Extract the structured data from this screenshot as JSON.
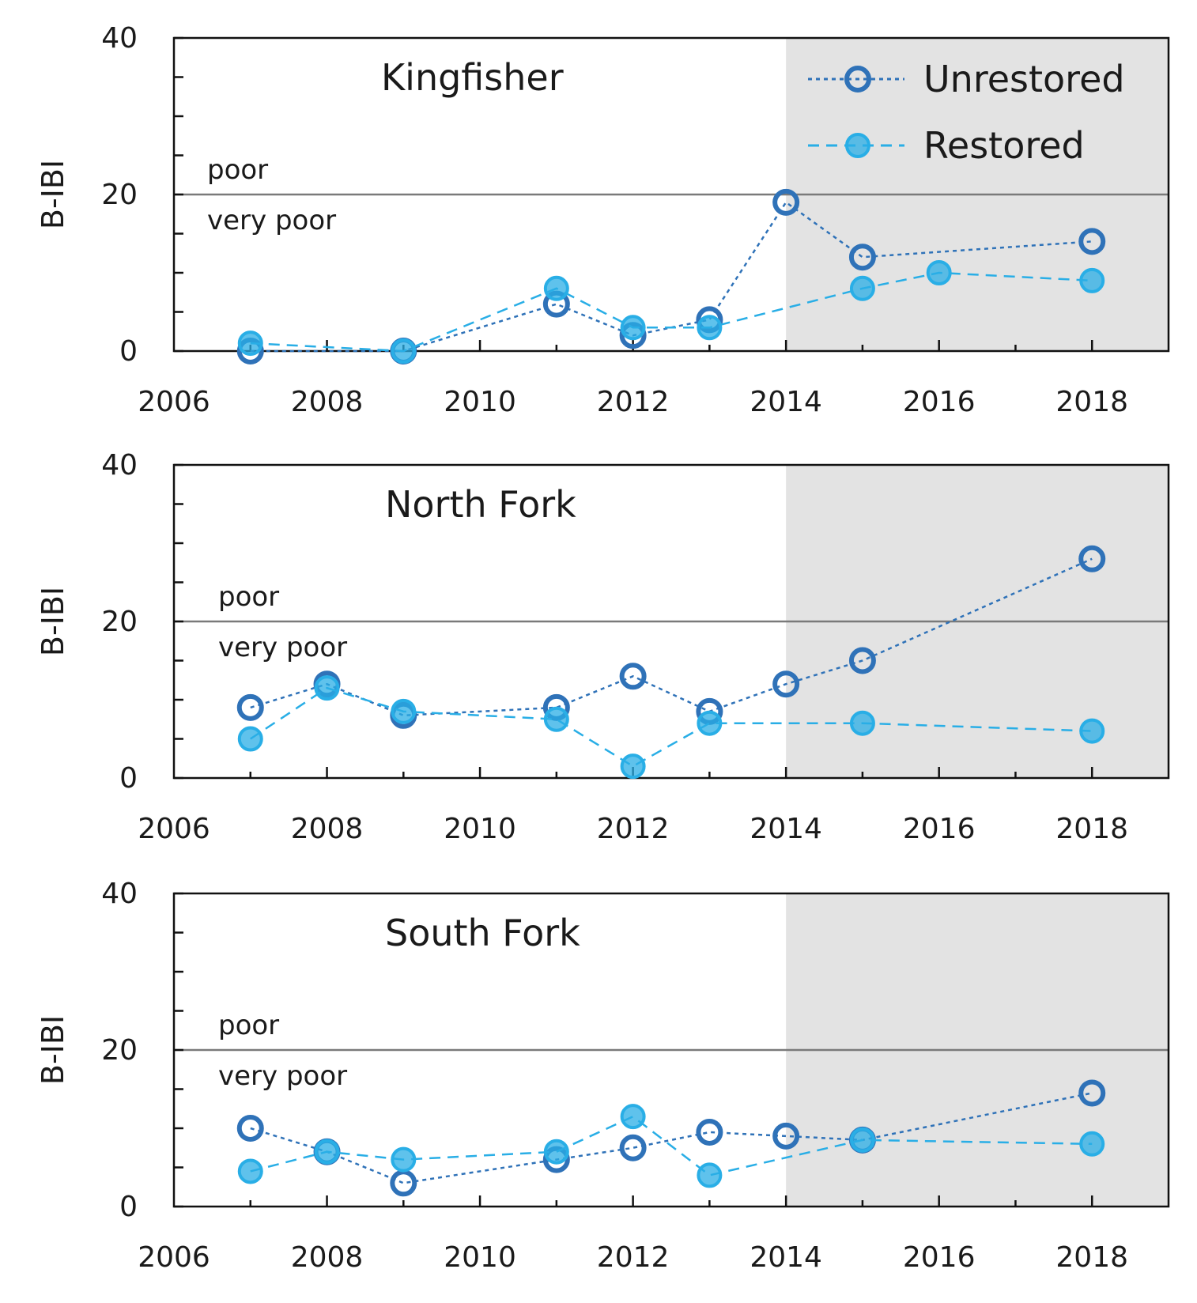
{
  "colors": {
    "unrestored": "#2f72b8",
    "restored": "#29aee6",
    "shade": "#e3e3e3",
    "axis": "#111111",
    "threshold_line": "#7a7a7a"
  },
  "legend": {
    "unrestored_label": "Unrestored",
    "restored_label": "Restored"
  },
  "chart_data": [
    {
      "type": "line",
      "title": "Kingfisher",
      "ylabel": "B-IBI",
      "xlabel": "",
      "xlim": [
        2006,
        2019
      ],
      "ylim": [
        0,
        40
      ],
      "x_ticks": [
        "2006",
        "2008",
        "2010",
        "2012",
        "2014",
        "2016",
        "2018"
      ],
      "y_ticks": [
        "0",
        "20",
        "40"
      ],
      "shaded_from": 2014,
      "threshold": 20,
      "threshold_labels": {
        "above": "poor",
        "below": "very poor"
      },
      "series": [
        {
          "name": "Unrestored",
          "x": [
            2007,
            2009,
            2011,
            2012,
            2013,
            2014,
            2015,
            2018
          ],
          "values": [
            0,
            0,
            6,
            2,
            4,
            19,
            12,
            14
          ]
        },
        {
          "name": "Restored",
          "x": [
            2007,
            2009,
            2011,
            2012,
            2013,
            2015,
            2016,
            2018
          ],
          "values": [
            1,
            0,
            8,
            3,
            3,
            8,
            10,
            9
          ]
        }
      ]
    },
    {
      "type": "line",
      "title": "North  Fork",
      "ylabel": "B-IBI",
      "xlabel": "",
      "xlim": [
        2006,
        2019
      ],
      "ylim": [
        0,
        40
      ],
      "x_ticks": [
        "2006",
        "2008",
        "2010",
        "2012",
        "2014",
        "2016",
        "2018"
      ],
      "y_ticks": [
        "0",
        "20",
        "40"
      ],
      "shaded_from": 2014,
      "threshold": 20,
      "threshold_labels": {
        "above": "poor",
        "below": "very poor"
      },
      "series": [
        {
          "name": "Unrestored",
          "x": [
            2007,
            2008,
            2009,
            2011,
            2012,
            2013,
            2014,
            2015,
            2018
          ],
          "values": [
            9,
            12,
            8,
            9,
            13,
            8.5,
            12,
            15,
            28
          ]
        },
        {
          "name": "Restored",
          "x": [
            2007,
            2008,
            2009,
            2011,
            2012,
            2013,
            2015,
            2018
          ],
          "values": [
            5,
            11.5,
            8.5,
            7.5,
            1.5,
            7,
            7,
            6
          ]
        }
      ]
    },
    {
      "type": "line",
      "title": "South  Fork",
      "ylabel": "B-IBI",
      "xlabel": "",
      "xlim": [
        2006,
        2019
      ],
      "ylim": [
        0,
        40
      ],
      "x_ticks": [
        "2006",
        "2008",
        "2010",
        "2012",
        "2014",
        "2016",
        "2018"
      ],
      "y_ticks": [
        "0",
        "20",
        "40"
      ],
      "shaded_from": 2014,
      "threshold": 20,
      "threshold_labels": {
        "above": "poor",
        "below": "very poor"
      },
      "series": [
        {
          "name": "Unrestored",
          "x": [
            2007,
            2008,
            2009,
            2011,
            2012,
            2013,
            2014,
            2015,
            2018
          ],
          "values": [
            10,
            7,
            3,
            6,
            7.5,
            9.5,
            9,
            8.5,
            14.5
          ]
        },
        {
          "name": "Restored",
          "x": [
            2007,
            2008,
            2009,
            2011,
            2012,
            2013,
            2015,
            2018
          ],
          "values": [
            4.5,
            7,
            6,
            7,
            11.5,
            4,
            8.5,
            8
          ]
        }
      ]
    }
  ]
}
